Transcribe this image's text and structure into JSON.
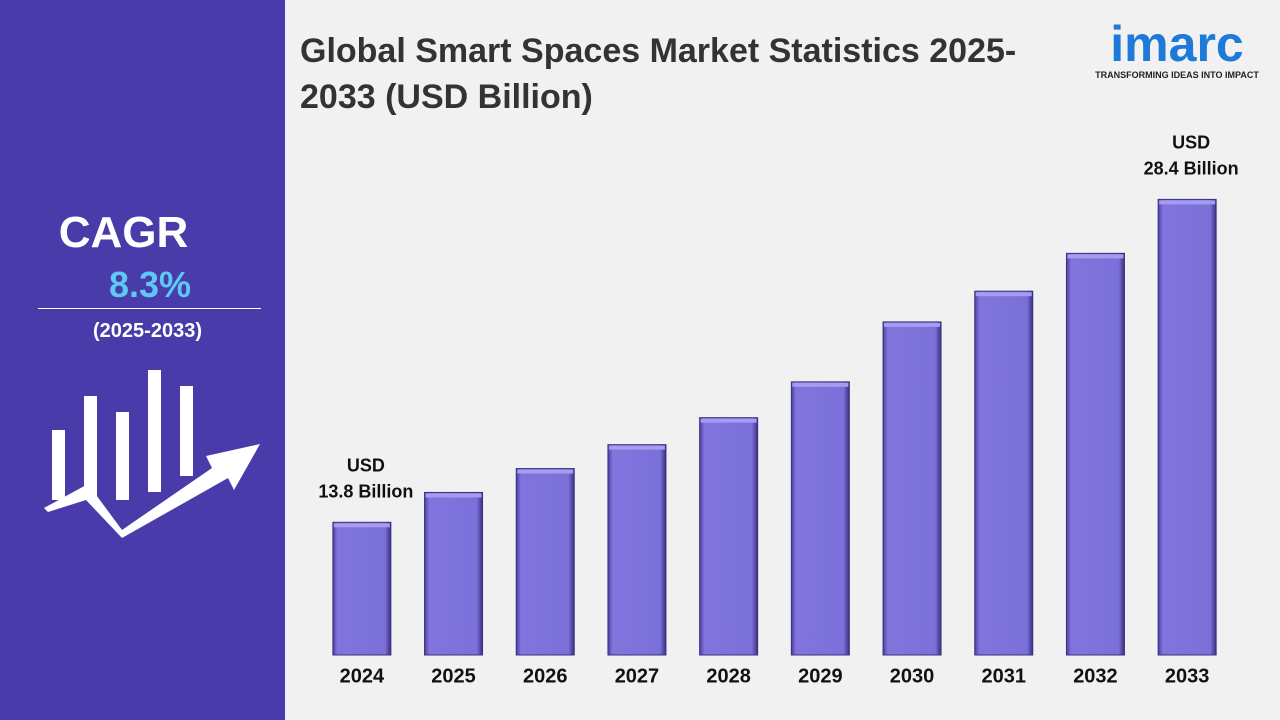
{
  "chart_data": {
    "type": "bar",
    "title": "Global Smart Spaces Market Statistics 2025-2033 (USD Billion)",
    "categories": [
      "2024",
      "2025",
      "2026",
      "2027",
      "2028",
      "2029",
      "2030",
      "2031",
      "2032",
      "2033"
    ],
    "values": [
      13.8,
      15.15,
      16.23,
      17.31,
      18.53,
      20.15,
      22.86,
      24.25,
      25.96,
      28.4
    ],
    "value_labels": [
      "USD 13.8 Billion",
      null,
      null,
      null,
      null,
      null,
      null,
      null,
      null,
      "USD 28.4 Billion"
    ],
    "color": "#7b70d9",
    "ylim": [
      7.8,
      30
    ]
  },
  "sidebar": {
    "label": "CAGR",
    "value": "8.3%",
    "period": "(2025-2033)"
  },
  "logo": {
    "name": "imarc",
    "tagline": "TRANSFORMING IDEAS INTO IMPACT"
  }
}
